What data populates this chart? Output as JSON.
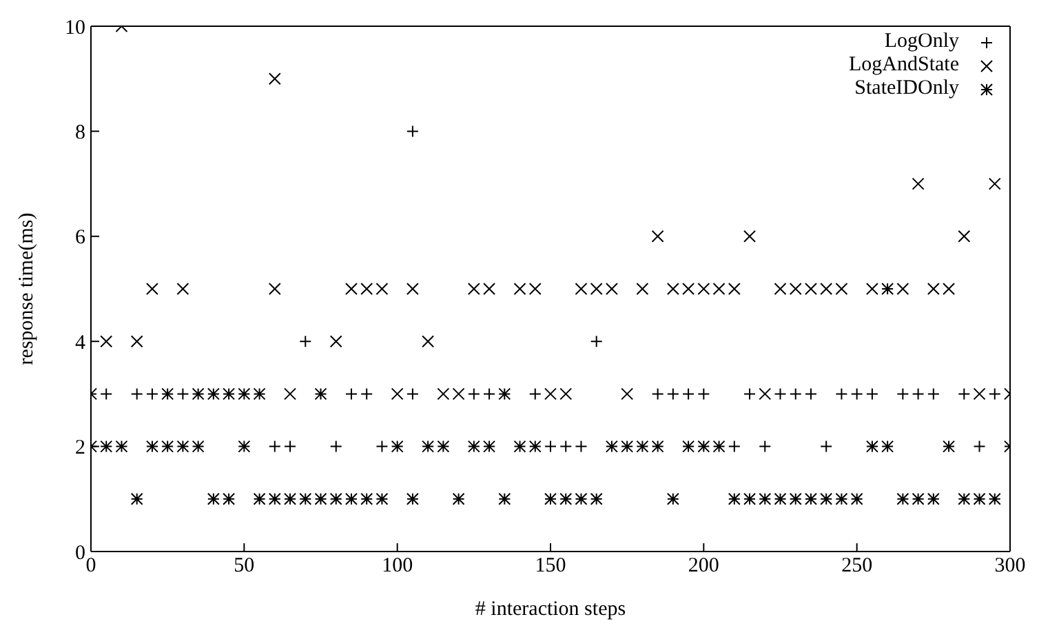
{
  "chart_data": {
    "type": "scatter",
    "xlabel": "# interaction steps",
    "ylabel": "response time(ms)",
    "xlim": [
      0,
      300
    ],
    "xticks": [
      0,
      50,
      100,
      150,
      200,
      250,
      300
    ],
    "ylim": [
      0,
      10
    ],
    "yticks": [
      0,
      2,
      4,
      6,
      8,
      10
    ],
    "legend": "top right",
    "series": [
      {
        "name": "LogOnly",
        "color": "#000000",
        "marker": "plus",
        "x": [
          70,
          165,
          5,
          15,
          20,
          30,
          85,
          90,
          105,
          125,
          130,
          145,
          185,
          190,
          195,
          200,
          215,
          225,
          230,
          235,
          245,
          250,
          255,
          265,
          270,
          275,
          285,
          295,
          60,
          65,
          80,
          95,
          150,
          155,
          160,
          210,
          220,
          240,
          290,
          105
        ],
        "values": [
          4,
          4,
          3,
          3,
          3,
          3,
          3,
          3,
          3,
          3,
          3,
          3,
          3,
          3,
          3,
          3,
          3,
          3,
          3,
          3,
          3,
          3,
          3,
          3,
          3,
          3,
          3,
          3,
          2,
          2,
          2,
          2,
          2,
          2,
          2,
          2,
          2,
          2,
          2,
          8
        ]
      },
      {
        "name": "LogAndState",
        "color": "#000000",
        "marker": "cross",
        "x": [
          10,
          60,
          270,
          295,
          185,
          215,
          285,
          20,
          30,
          60,
          85,
          90,
          95,
          105,
          125,
          130,
          140,
          145,
          160,
          165,
          170,
          180,
          190,
          195,
          200,
          205,
          210,
          225,
          230,
          235,
          240,
          245,
          255,
          265,
          275,
          280,
          5,
          15,
          80,
          110,
          65,
          100,
          115,
          120,
          150,
          155,
          175,
          220,
          290,
          300
        ],
        "values": [
          10,
          9,
          7,
          7,
          6,
          6,
          6,
          5,
          5,
          5,
          5,
          5,
          5,
          5,
          5,
          5,
          5,
          5,
          5,
          5,
          5,
          5,
          5,
          5,
          5,
          5,
          5,
          5,
          5,
          5,
          5,
          5,
          5,
          5,
          5,
          5,
          4,
          4,
          4,
          4,
          3,
          3,
          3,
          3,
          3,
          3,
          3,
          3,
          3,
          3
        ]
      },
      {
        "name": "StateIDOnly",
        "color": "#000000",
        "x": [
          260,
          0,
          25,
          35,
          40,
          45,
          50,
          55,
          75,
          135,
          0,
          5,
          10,
          20,
          25,
          30,
          35,
          50,
          100,
          110,
          115,
          125,
          130,
          140,
          145,
          170,
          175,
          180,
          185,
          195,
          200,
          205,
          255,
          260,
          280,
          300,
          15,
          40,
          45,
          55,
          60,
          65,
          70,
          75,
          80,
          85,
          90,
          95,
          105,
          120,
          135,
          150,
          155,
          160,
          165,
          190,
          210,
          215,
          220,
          225,
          230,
          235,
          240,
          245,
          250,
          265,
          270,
          275,
          285,
          290,
          295
        ],
        "values": [
          5,
          3,
          3,
          3,
          3,
          3,
          3,
          3,
          3,
          3,
          2,
          2,
          2,
          2,
          2,
          2,
          2,
          2,
          2,
          2,
          2,
          2,
          2,
          2,
          2,
          2,
          2,
          2,
          2,
          2,
          2,
          2,
          2,
          2,
          2,
          2,
          1,
          1,
          1,
          1,
          1,
          1,
          1,
          1,
          1,
          1,
          1,
          1,
          1,
          1,
          1,
          1,
          1,
          1,
          1,
          1,
          1,
          1,
          1,
          1,
          1,
          1,
          1,
          1,
          1,
          1,
          1,
          1,
          1,
          1,
          1
        ]
      }
    ]
  }
}
